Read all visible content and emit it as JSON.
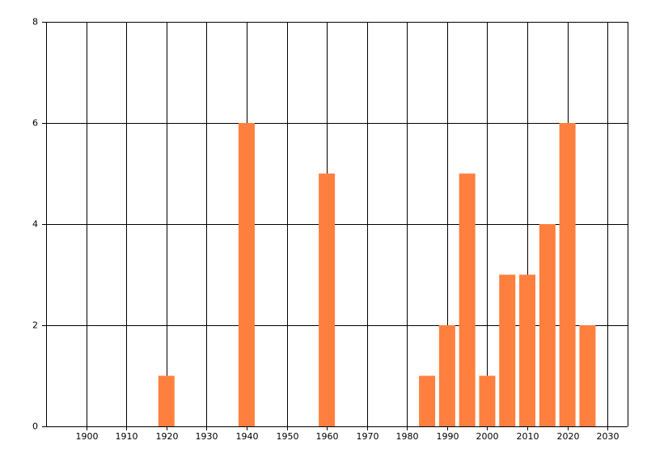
{
  "chart_data": {
    "type": "bar",
    "x": [
      1920,
      1940,
      1960,
      1985,
      1990,
      1995,
      2000,
      2005,
      2010,
      2015,
      2020,
      2025
    ],
    "values": [
      1,
      6,
      5,
      1,
      2,
      5,
      1,
      3,
      3,
      4,
      6,
      2
    ],
    "color": "#ff7f3f",
    "xlim": [
      1890,
      2035
    ],
    "xticks": [
      1900,
      1910,
      1920,
      1930,
      1940,
      1950,
      1960,
      1970,
      1980,
      1990,
      2000,
      2010,
      2020,
      2030
    ],
    "ylim": [
      0,
      8
    ],
    "yticks": [
      0,
      2,
      4,
      6,
      8
    ],
    "grid": true
  }
}
